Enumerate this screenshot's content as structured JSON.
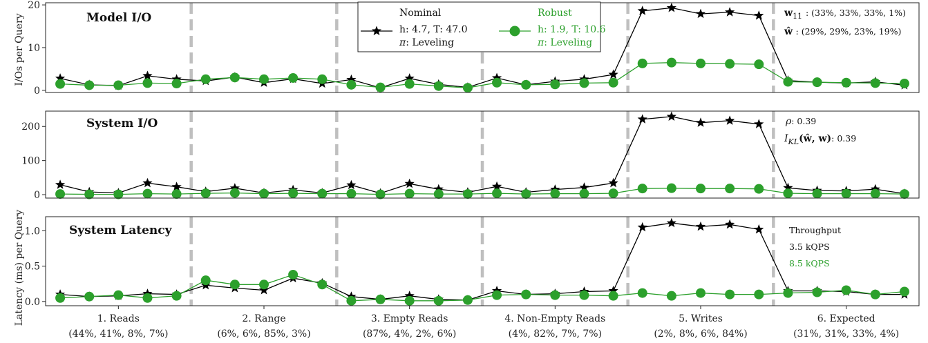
{
  "colors": {
    "nominal": "#000000",
    "robust": "#2ca02c",
    "separator": "#bfbfbf"
  },
  "chart_data": [
    {
      "type": "line",
      "title": "Model I/O",
      "ylabel": "I/Os per Query",
      "ylim": [
        -0.5,
        20.5
      ],
      "yticks": [
        0,
        10,
        20
      ],
      "x": [
        1,
        2,
        3,
        4,
        5,
        6,
        7,
        8,
        9,
        10,
        11,
        12,
        13,
        14,
        15,
        16,
        17,
        18,
        19,
        20,
        21,
        22,
        23,
        24,
        25,
        26,
        27,
        28,
        29,
        30
      ],
      "series": [
        {
          "name": "Nominal",
          "marker": "star",
          "values": [
            2.8,
            1.3,
            1.1,
            3.4,
            2.6,
            2.2,
            3.1,
            1.8,
            2.7,
            1.6,
            2.5,
            0.6,
            2.8,
            1.4,
            0.7,
            2.9,
            1.3,
            2.1,
            2.6,
            3.7,
            18.6,
            19.3,
            17.9,
            18.3,
            17.5,
            2.3,
            1.9,
            1.7,
            2.0,
            1.2
          ]
        },
        {
          "name": "Robust",
          "marker": "circle",
          "values": [
            1.5,
            1.2,
            1.2,
            1.7,
            1.6,
            2.6,
            3.0,
            2.6,
            2.9,
            2.6,
            1.3,
            0.7,
            1.5,
            1.0,
            0.6,
            1.8,
            1.3,
            1.4,
            1.7,
            1.8,
            6.3,
            6.5,
            6.3,
            6.2,
            6.1,
            2.0,
            1.9,
            1.8,
            1.7,
            1.6
          ]
        }
      ]
    },
    {
      "type": "line",
      "title": "System I/O",
      "ylabel": "",
      "ylim": [
        -10,
        245
      ],
      "yticks": [
        0,
        100,
        200
      ],
      "x": [
        1,
        2,
        3,
        4,
        5,
        6,
        7,
        8,
        9,
        10,
        11,
        12,
        13,
        14,
        15,
        16,
        17,
        18,
        19,
        20,
        21,
        22,
        23,
        24,
        25,
        26,
        27,
        28,
        29,
        30
      ],
      "series": [
        {
          "name": "Nominal",
          "marker": "star",
          "values": [
            29,
            8,
            5,
            34,
            23,
            9,
            19,
            5,
            14,
            5,
            28,
            4,
            32,
            16,
            7,
            24,
            7,
            15,
            21,
            34,
            221,
            229,
            211,
            217,
            207,
            20,
            12,
            11,
            16,
            3
          ]
        },
        {
          "name": "Robust",
          "marker": "circle",
          "values": [
            2,
            1,
            1,
            3,
            2,
            4,
            5,
            3,
            4,
            3,
            3,
            1,
            3,
            2,
            2,
            4,
            2,
            3,
            3,
            4,
            18,
            19,
            18,
            18,
            17,
            4,
            3,
            3,
            3,
            2
          ]
        }
      ]
    },
    {
      "type": "line",
      "title": "System Latency",
      "ylabel": "Latency (ms) per Query",
      "ylim": [
        -0.06,
        1.2
      ],
      "yticks": [
        0.0,
        0.5,
        1.0
      ],
      "ytick_labels": [
        "0.0",
        "0.5",
        "1.0"
      ],
      "x": [
        1,
        2,
        3,
        4,
        5,
        6,
        7,
        8,
        9,
        10,
        11,
        12,
        13,
        14,
        15,
        16,
        17,
        18,
        19,
        20,
        21,
        22,
        23,
        24,
        25,
        26,
        27,
        28,
        29,
        30
      ],
      "series": [
        {
          "name": "Nominal",
          "marker": "star",
          "values": [
            0.1,
            0.07,
            0.08,
            0.11,
            0.1,
            0.23,
            0.19,
            0.16,
            0.33,
            0.26,
            0.07,
            0.03,
            0.08,
            0.03,
            0.02,
            0.15,
            0.1,
            0.11,
            0.14,
            0.15,
            1.05,
            1.11,
            1.06,
            1.09,
            1.02,
            0.15,
            0.15,
            0.14,
            0.1,
            0.1
          ]
        },
        {
          "name": "Robust",
          "marker": "circle",
          "values": [
            0.05,
            0.07,
            0.09,
            0.05,
            0.08,
            0.3,
            0.24,
            0.24,
            0.38,
            0.24,
            0.01,
            0.03,
            0.01,
            0.01,
            0.02,
            0.09,
            0.1,
            0.09,
            0.09,
            0.08,
            0.12,
            0.08,
            0.12,
            0.1,
            0.1,
            0.12,
            0.13,
            0.16,
            0.1,
            0.14
          ]
        }
      ]
    }
  ],
  "legend": {
    "nominal": {
      "label": "Nominal",
      "line1": "h: 4.7, T: 47.0",
      "line2_symbol": "π",
      "line2_text": ": Leveling"
    },
    "robust": {
      "label": "Robust",
      "line1": "h: 1.9, T: 10.6",
      "line2_symbol": "π",
      "line2_text": ": Leveling"
    }
  },
  "annotations": {
    "w11_label": "w",
    "w11_sub": "11",
    "w11_value": ": (33%, 33%, 33%, 1%)",
    "what_label": "ŵ",
    "what_value": ": (29%, 29%, 23%, 19%)",
    "rho_label": "ρ",
    "rho_value": ": 0.39",
    "ikl_label": "I",
    "ikl_sub": "KL",
    "ikl_args": "(ŵ, w)",
    "ikl_value": ": 0.39",
    "throughput_label": "Throughput",
    "throughput_nominal": "3.5 kQPS",
    "throughput_robust": "8.5 kQPS"
  },
  "x_groups": [
    {
      "name": "1. Reads",
      "mix": "(44%, 41%, 8%, 7%)"
    },
    {
      "name": "2. Range",
      "mix": "(6%, 6%, 85%, 3%)"
    },
    {
      "name": "3. Empty Reads",
      "mix": "(87%, 4%, 2%, 6%)"
    },
    {
      "name": "4. Non-Empty Reads",
      "mix": "(4%, 82%, 7%, 7%)"
    },
    {
      "name": "5. Writes",
      "mix": "(2%, 8%, 6%, 84%)"
    },
    {
      "name": "6. Expected",
      "mix": "(31%, 31%, 33%, 4%)"
    }
  ]
}
